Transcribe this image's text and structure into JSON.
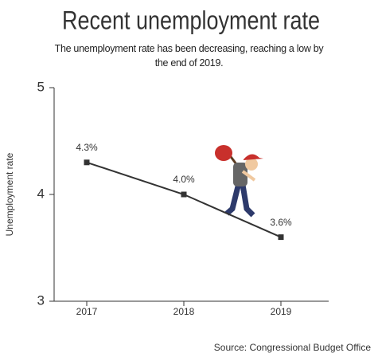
{
  "chart_data": {
    "type": "line",
    "title": "Recent unemployment rate",
    "subtitle": "The unemployment rate has been decreasing, reaching a low by the end of 2019.",
    "y_label": "Unemployment rate",
    "source": "Source: Congressional Budget Office",
    "categories": [
      "2017",
      "2018",
      "2019"
    ],
    "values": [
      4.3,
      4.0,
      3.6
    ],
    "value_labels": [
      "4.3%",
      "4.0%",
      "3.6%"
    ],
    "color": "#333333",
    "ylim": [
      3,
      5
    ],
    "yticks": [
      3,
      4,
      5
    ],
    "grid": false
  }
}
